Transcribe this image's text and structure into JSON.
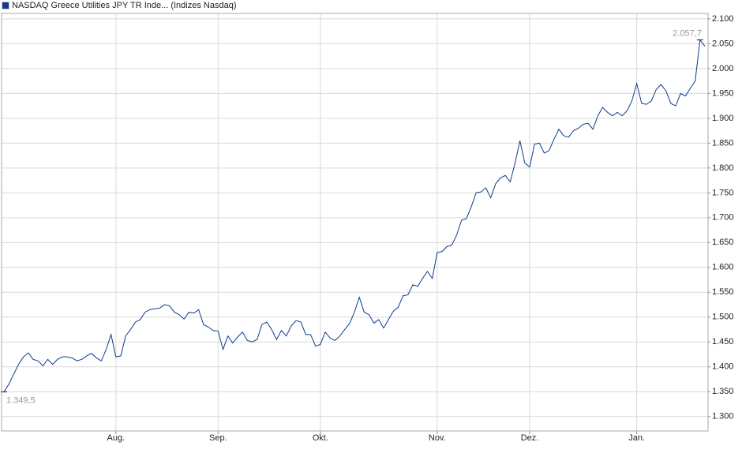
{
  "chart_data": {
    "type": "line",
    "title": "NASDAQ Greece Utilities JPY TR Inde... (Indizes Nasdaq)",
    "categories": [
      null,
      null,
      null,
      null,
      null,
      null,
      null,
      null,
      null,
      null,
      null,
      null,
      null,
      null,
      null,
      null,
      null,
      null,
      null,
      null,
      null,
      null,
      null,
      "Aug.",
      null,
      null,
      null,
      null,
      null,
      null,
      null,
      null,
      null,
      null,
      null,
      null,
      null,
      null,
      null,
      null,
      null,
      null,
      null,
      null,
      "Sep.",
      null,
      null,
      null,
      null,
      null,
      null,
      null,
      null,
      null,
      null,
      null,
      null,
      null,
      null,
      null,
      null,
      null,
      null,
      null,
      null,
      "Okt.",
      null,
      null,
      null,
      null,
      null,
      null,
      null,
      null,
      null,
      null,
      null,
      null,
      null,
      null,
      null,
      null,
      null,
      null,
      null,
      null,
      null,
      null,
      null,
      "Nov.",
      null,
      null,
      null,
      null,
      null,
      null,
      null,
      null,
      null,
      null,
      null,
      null,
      null,
      null,
      null,
      null,
      null,
      null,
      "Dez.",
      null,
      null,
      null,
      null,
      null,
      null,
      null,
      null,
      null,
      null,
      null,
      null,
      null,
      null,
      null,
      null,
      null,
      null,
      null,
      null,
      null,
      "Jan.",
      null,
      null,
      null,
      null,
      null,
      null,
      null,
      null,
      null,
      null,
      null,
      null,
      null,
      null
    ],
    "series": [
      {
        "name": "NASDAQ Greece Utilities JPY TR Inde... (Indizes Nasdaq)",
        "color": "#0d3b8e",
        "values": [
          1349.5,
          1365,
          1385,
          1405,
          1420,
          1428,
          1415,
          1412,
          1402,
          1415,
          1405,
          1415,
          1420,
          1420,
          1418,
          1412,
          1415,
          1422,
          1427,
          1418,
          1412,
          1435,
          1465,
          1420,
          1422,
          1462,
          1475,
          1490,
          1495,
          1510,
          1515,
          1517,
          1518,
          1525,
          1523,
          1510,
          1505,
          1496,
          1510,
          1508,
          1515,
          1485,
          1480,
          1473,
          1472,
          1435,
          1462,
          1448,
          1460,
          1470,
          1453,
          1450,
          1455,
          1485,
          1490,
          1475,
          1455,
          1473,
          1462,
          1482,
          1493,
          1490,
          1465,
          1465,
          1442,
          1445,
          1470,
          1458,
          1453,
          1462,
          1475,
          1487,
          1510,
          1540,
          1510,
          1505,
          1488,
          1495,
          1478,
          1495,
          1512,
          1520,
          1543,
          1545,
          1565,
          1562,
          1578,
          1592,
          1578,
          1630,
          1632,
          1642,
          1645,
          1665,
          1695,
          1698,
          1722,
          1750,
          1752,
          1760,
          1740,
          1768,
          1780,
          1785,
          1772,
          1810,
          1855,
          1810,
          1802,
          1848,
          1850,
          1830,
          1835,
          1858,
          1878,
          1865,
          1862,
          1875,
          1880,
          1888,
          1890,
          1878,
          1905,
          1922,
          1912,
          1905,
          1912,
          1905,
          1915,
          1935,
          1970,
          1930,
          1928,
          1935,
          1958,
          1968,
          1955,
          1930,
          1925,
          1950,
          1945,
          1960,
          1975,
          2057.7,
          2045
        ],
        "value_labels": [
          "1.349,5",
          null,
          null,
          null,
          null,
          null,
          null,
          null,
          null,
          null,
          null,
          null,
          null,
          null,
          null,
          null,
          null,
          null,
          null,
          null,
          null,
          null,
          null,
          null,
          null,
          null,
          null,
          null,
          null,
          null,
          null,
          null,
          null,
          null,
          null,
          null,
          null,
          null,
          null,
          null,
          null,
          null,
          null,
          null,
          null,
          null,
          null,
          null,
          null,
          null,
          null,
          null,
          null,
          null,
          null,
          null,
          null,
          null,
          null,
          null,
          null,
          null,
          null,
          null,
          null,
          null,
          null,
          null,
          null,
          null,
          null,
          null,
          null,
          null,
          null,
          null,
          null,
          null,
          null,
          null,
          null,
          null,
          null,
          null,
          null,
          null,
          null,
          null,
          null,
          null,
          null,
          null,
          null,
          null,
          null,
          null,
          null,
          null,
          null,
          null,
          null,
          null,
          null,
          null,
          null,
          null,
          null,
          null,
          null,
          null,
          null,
          null,
          null,
          null,
          null,
          null,
          null,
          null,
          null,
          null,
          null,
          null,
          null,
          null,
          null,
          null,
          null,
          null,
          null,
          null,
          null,
          null,
          null,
          null,
          null,
          null,
          null,
          null,
          null,
          null,
          null,
          null,
          null,
          "2.057,7",
          null
        ]
      }
    ],
    "ylim": [
      1271,
      2111
    ],
    "yticks": [
      {
        "value": 1300,
        "label": "1.300"
      },
      {
        "value": 1350,
        "label": "1.350"
      },
      {
        "value": 1400,
        "label": "1.400"
      },
      {
        "value": 1450,
        "label": "1.450"
      },
      {
        "value": 1500,
        "label": "1.500"
      },
      {
        "value": 1550,
        "label": "1.550"
      },
      {
        "value": 1600,
        "label": "1.600"
      },
      {
        "value": 1650,
        "label": "1.650"
      },
      {
        "value": 1700,
        "label": "1.700"
      },
      {
        "value": 1750,
        "label": "1.750"
      },
      {
        "value": 1800,
        "label": "1.800"
      },
      {
        "value": 1850,
        "label": "1.850"
      },
      {
        "value": 1900,
        "label": "1.900"
      },
      {
        "value": 1950,
        "label": "1.950"
      },
      {
        "value": 2000,
        "label": "2.000"
      },
      {
        "value": 2050,
        "label": "2.050"
      },
      {
        "value": 2100,
        "label": "2.100"
      }
    ],
    "grid": true
  }
}
